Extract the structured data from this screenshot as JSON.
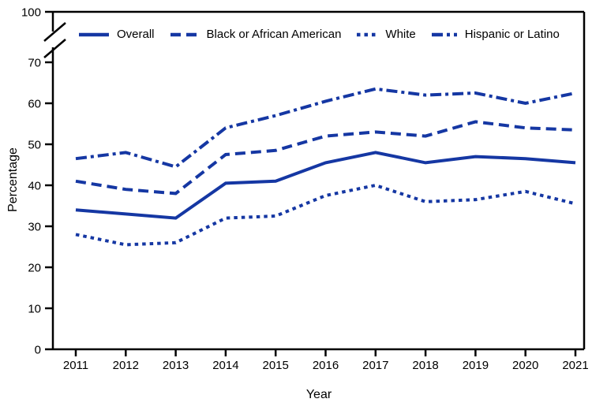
{
  "chart_data": {
    "type": "line",
    "title": "",
    "xlabel": "Year",
    "ylabel": "Percentage",
    "x": [
      2011,
      2012,
      2013,
      2014,
      2015,
      2016,
      2017,
      2018,
      2019,
      2020,
      2021
    ],
    "yticks": [
      0,
      10,
      20,
      30,
      40,
      50,
      60,
      70,
      100
    ],
    "ylim": [
      0,
      100
    ],
    "axis_break_between": [
      70,
      100
    ],
    "grid": false,
    "legend_position": "top",
    "line_color": "#1537a3",
    "axis_color": "#000000",
    "series": [
      {
        "name": "Overall",
        "style": "solid",
        "values": [
          34,
          33,
          32,
          40.5,
          41,
          45.5,
          48,
          45.5,
          47,
          46.5,
          45.5
        ]
      },
      {
        "name": "Black or African American",
        "style": "dashed",
        "values": [
          41,
          39,
          38,
          47.5,
          48.5,
          52,
          53,
          52,
          55.5,
          54,
          53.5
        ]
      },
      {
        "name": "White",
        "style": "dotted",
        "values": [
          28,
          25.5,
          26,
          32,
          32.5,
          37.5,
          40,
          36,
          36.5,
          38.5,
          35.5
        ]
      },
      {
        "name": "Hispanic or Latino",
        "style": "dashdot",
        "values": [
          46.5,
          48,
          44.5,
          54,
          57,
          60.5,
          63.5,
          62,
          62.5,
          60,
          62.5
        ]
      }
    ]
  }
}
